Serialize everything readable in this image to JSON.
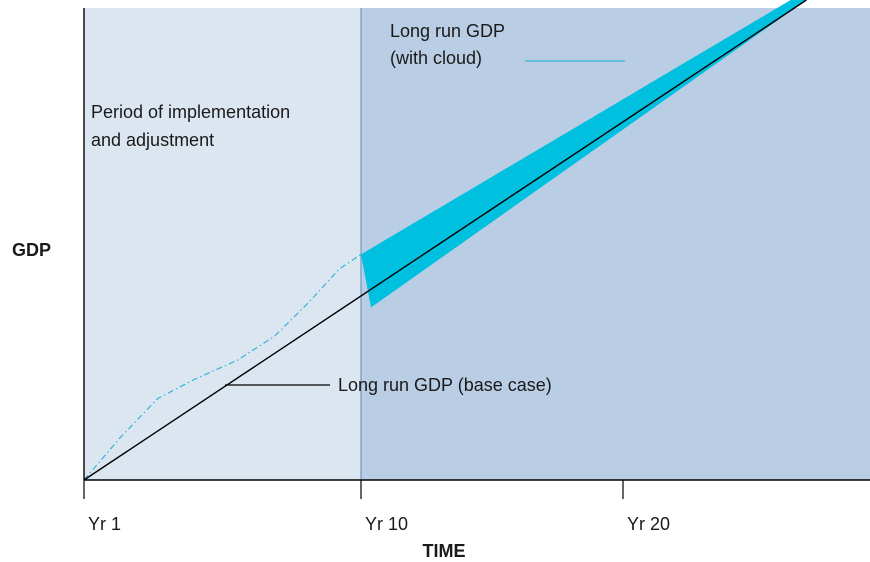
{
  "colors": {
    "adjustment_region": "#dce6f1",
    "long_run_region": "#b9cde4",
    "divider": "#6f97c8",
    "cloud_band": "#00c0e0",
    "cloud_path": "#34b4d6",
    "base_line": "#000000",
    "axis": "#000000"
  },
  "chart_data": {
    "type": "line",
    "xlabel": "TIME",
    "ylabel": "GDP",
    "x_ticks": [
      {
        "x": 1,
        "label": "Yr 1"
      },
      {
        "x": 10,
        "label": "Yr 10"
      },
      {
        "x": 20,
        "label": "Yr 20"
      }
    ],
    "xlim": [
      1,
      30
    ],
    "ylim": [
      0,
      1
    ],
    "regions": [
      {
        "name": "adjustment",
        "x": [
          1,
          10
        ],
        "label_lines": [
          "Period of implementation",
          "and adjustment"
        ]
      },
      {
        "name": "long_run",
        "x": [
          10,
          30
        ]
      }
    ],
    "series": [
      {
        "name": "Long run GDP (base case)",
        "style": "solid",
        "points": [
          [
            1,
            0.0
          ],
          [
            27,
            1.0
          ]
        ]
      },
      {
        "name": "Long run GDP (with cloud)",
        "style": "band",
        "points": [
          [
            10,
            0.47
          ],
          [
            26.4,
            1.0
          ]
        ]
      },
      {
        "name": "cloud adjustment path",
        "style": "dash-dot",
        "points": [
          [
            1,
            0.0
          ],
          [
            2.2,
            0.09
          ],
          [
            3.4,
            0.17
          ],
          [
            4.6,
            0.21
          ],
          [
            6.0,
            0.25
          ],
          [
            7.2,
            0.3
          ],
          [
            8.3,
            0.37
          ],
          [
            9.3,
            0.44
          ],
          [
            10,
            0.47
          ]
        ]
      }
    ],
    "annotations": {
      "base_case": "Long run GDP (base case)",
      "with_cloud_lines": [
        "Long run GDP",
        "(with cloud)"
      ]
    }
  }
}
